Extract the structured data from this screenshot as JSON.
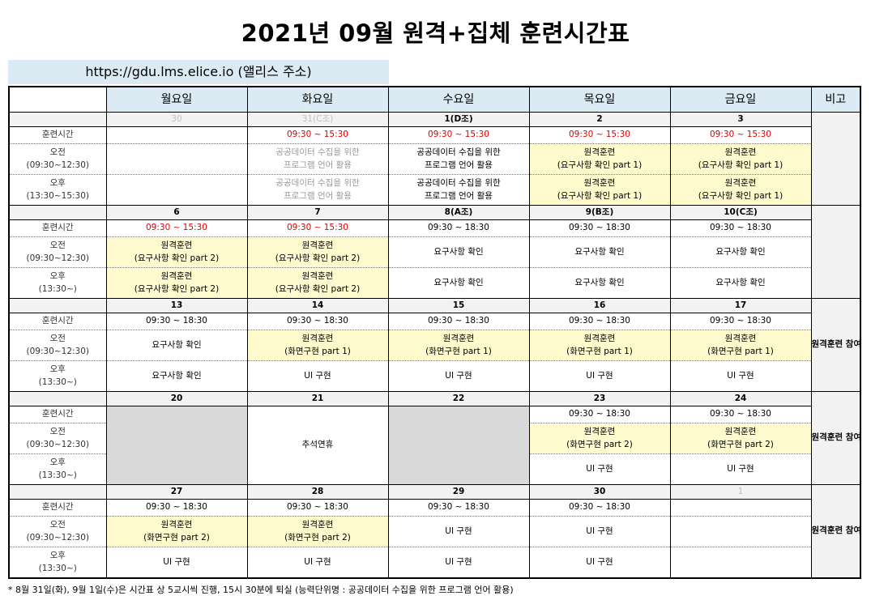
{
  "title": "2021년 09월 원격+집체 훈련시간표",
  "url_text": "https://gdu.lms.elice.io (앨리스 주소)",
  "headers": [
    "월요일",
    "화요일",
    "수요일",
    "목요일",
    "금요일",
    "비고"
  ],
  "row_labels": {
    "time": "훈련시간",
    "am": "오전",
    "am_range": "(09:30~12:30)",
    "pm": "오후",
    "pm_range_long": "(13:30~15:30)",
    "pm_range": "(13:30~)"
  },
  "notes": {
    "w3": "원격훈련 참여 후 집체훈련 참여",
    "w4": "원격훈련 참여 후 집체훈련 참여",
    "w5": "원격훈련 참여 후 집체훈련 참여"
  },
  "holiday_label": "추석연휴",
  "weeks": [
    {
      "dates": [
        "30",
        "31(C조)",
        "1(D조)",
        "2",
        "3"
      ],
      "times": [
        "",
        "09:30 ~ 15:30",
        "09:30 ~ 15:30",
        "09:30 ~ 15:30",
        "09:30 ~ 15:30"
      ],
      "am": [
        "",
        "공공데이터 수집을 위한\n프로그램 언어 활용",
        "공공데이터 수집을 위한\n프로그램 언어 활용",
        "원격훈련\n(요구사항 확인 part 1)",
        "원격훈련\n(요구사항 확인 part 1)"
      ],
      "pm": [
        "",
        "공공데이터 수집을 위한\n프로그램 언어 활용",
        "공공데이터 수집을 위한\n프로그램 언어 활용",
        "원격훈련\n(요구사항 확인 part 1)",
        "원격훈련\n(요구사항 확인 part 1)"
      ]
    },
    {
      "dates": [
        "6",
        "7",
        "8(A조)",
        "9(B조)",
        "10(C조)"
      ],
      "times": [
        "09:30 ~ 15:30",
        "09:30 ~ 15:30",
        "09:30 ~ 18:30",
        "09:30 ~ 18:30",
        "09:30 ~ 18:30"
      ],
      "am": [
        "원격훈련\n(요구사항 확인 part 2)",
        "원격훈련\n(요구사항 확인 part 2)",
        "요구사항 확인",
        "요구사항 확인",
        "요구사항 확인"
      ],
      "pm": [
        "원격훈련\n(요구사항 확인 part 2)",
        "원격훈련\n(요구사항 확인 part 2)",
        "요구사항 확인",
        "요구사항 확인",
        "요구사항 확인"
      ]
    },
    {
      "dates": [
        "13",
        "14",
        "15",
        "16",
        "17"
      ],
      "times": [
        "09:30 ~ 18:30",
        "09:30 ~ 18:30",
        "09:30 ~ 18:30",
        "09:30 ~ 18:30",
        "09:30 ~ 18:30"
      ],
      "am": [
        "요구사항 확인",
        "원격훈련\n(화면구현 part 1)",
        "원격훈련\n(화면구현 part 1)",
        "원격훈련\n(화면구현 part 1)",
        "원격훈련\n(화면구현 part 1)"
      ],
      "pm": [
        "요구사항 확인",
        "UI 구현",
        "UI 구현",
        "UI 구현",
        "UI 구현"
      ]
    },
    {
      "dates": [
        "20",
        "21",
        "22",
        "23",
        "24"
      ],
      "times": [
        "",
        "",
        "",
        "09:30 ~ 18:30",
        "09:30 ~ 18:30"
      ],
      "am": [
        "",
        "",
        "",
        "원격훈련\n(화면구현 part 2)",
        "원격훈련\n(화면구현 part 2)"
      ],
      "pm": [
        "",
        "",
        "",
        "UI 구현",
        "UI 구현"
      ]
    },
    {
      "dates": [
        "27",
        "28",
        "29",
        "30",
        "1"
      ],
      "times": [
        "09:30 ~ 18:30",
        "09:30 ~ 18:30",
        "09:30 ~ 18:30",
        "09:30 ~ 18:30",
        ""
      ],
      "am": [
        "원격훈련\n(화면구현 part 2)",
        "원격훈련\n(화면구현 part 2)",
        "UI 구현",
        "UI 구현",
        ""
      ],
      "pm": [
        "UI 구현",
        "UI 구현",
        "UI 구현",
        "UI 구현",
        ""
      ]
    }
  ],
  "footnote": "* 8월 31일(화), 9월 1일(수)은 시간표 상 5교시씩 진행, 15시 30분에 퇴실 (능력단위명 : 공공데이터 수집을 위한 프로그램 언어 활용)"
}
